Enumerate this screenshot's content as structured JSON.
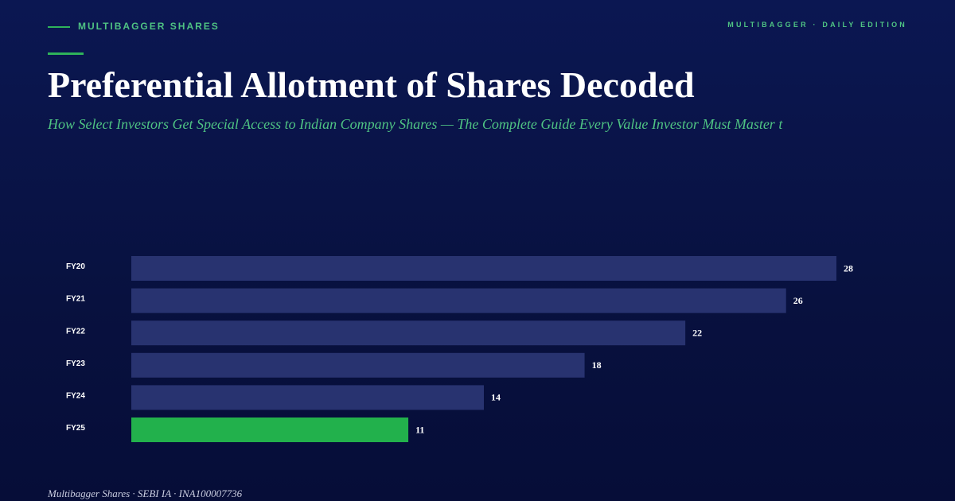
{
  "header": {
    "brand": "MULTIBAGGER SHARES",
    "edition": "MULTIBAGGER · DAILY EDITION"
  },
  "title": "Preferential Allotment of Shares Decoded",
  "subtitle": "How Select Investors Get Special Access to Indian Company Shares — The Complete Guide Every Value Investor Must Master t",
  "footer": "Multibagger Shares · SEBI IA · INA100007736",
  "chart_data": {
    "type": "bar",
    "orientation": "horizontal",
    "categories": [
      "FY20",
      "FY21",
      "FY22",
      "FY23",
      "FY24",
      "FY25"
    ],
    "values": [
      28,
      26,
      22,
      18,
      14,
      11
    ],
    "colors": [
      "#283370",
      "#283370",
      "#283370",
      "#283370",
      "#283370",
      "#22b14c"
    ]
  }
}
